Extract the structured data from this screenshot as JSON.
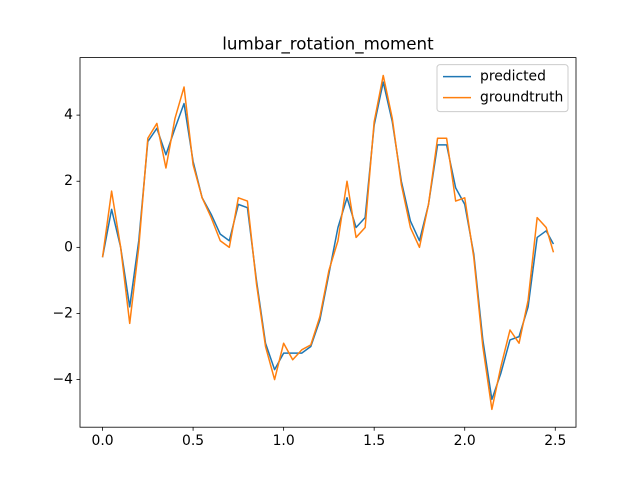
{
  "chart_data": {
    "type": "line",
    "title": "lumbar_rotation_moment",
    "x": [
      0,
      0.05,
      0.1,
      0.15,
      0.2,
      0.25,
      0.3,
      0.35,
      0.4,
      0.45,
      0.5,
      0.55,
      0.6,
      0.65,
      0.7,
      0.75,
      0.8,
      0.85,
      0.9,
      0.95,
      1.0,
      1.05,
      1.1,
      1.15,
      1.2,
      1.25,
      1.3,
      1.35,
      1.4,
      1.45,
      1.5,
      1.55,
      1.6,
      1.65,
      1.7,
      1.75,
      1.8,
      1.85,
      1.9,
      1.95,
      2.0,
      2.05,
      2.1,
      2.15,
      2.2,
      2.25,
      2.3,
      2.35,
      2.4,
      2.45,
      2.49
    ],
    "series": [
      {
        "name": "predicted",
        "color": "#1f77b4",
        "values": [
          -0.3,
          1.15,
          0.0,
          -1.8,
          0.2,
          3.2,
          3.6,
          2.8,
          3.6,
          4.35,
          2.6,
          1.5,
          1.0,
          0.4,
          0.2,
          1.3,
          1.2,
          -1.0,
          -2.9,
          -3.7,
          -3.2,
          -3.2,
          -3.2,
          -3.0,
          -2.2,
          -0.8,
          0.6,
          1.5,
          0.6,
          0.9,
          3.7,
          5.0,
          3.8,
          2.0,
          0.8,
          0.2,
          1.3,
          3.1,
          3.1,
          1.8,
          1.3,
          -0.2,
          -2.8,
          -4.6,
          -3.8,
          -2.8,
          -2.7,
          -1.8,
          0.3,
          0.5,
          0.1
        ]
      },
      {
        "name": "groundtruth",
        "color": "#ff7f0e",
        "values": [
          -0.3,
          1.7,
          0.0,
          -2.3,
          0.0,
          3.3,
          3.75,
          2.4,
          3.9,
          4.85,
          2.5,
          1.5,
          0.9,
          0.2,
          0.0,
          1.5,
          1.4,
          -1.1,
          -3.0,
          -4.0,
          -2.9,
          -3.4,
          -3.1,
          -2.95,
          -2.1,
          -0.7,
          0.2,
          2.0,
          0.3,
          0.6,
          3.8,
          5.2,
          3.9,
          1.9,
          0.6,
          0.0,
          1.3,
          3.3,
          3.3,
          1.4,
          1.5,
          -0.3,
          -3.0,
          -4.9,
          -3.6,
          -2.5,
          -2.9,
          -1.6,
          0.9,
          0.6,
          -0.15
        ]
      }
    ],
    "xlim": [
      -0.1245,
      2.6145
    ],
    "ylim": [
      -5.44,
      5.74
    ],
    "xticks": [
      {
        "value": 0,
        "label": "0.0"
      },
      0.5,
      {
        "value": 1,
        "label": "1.0"
      },
      1.5,
      {
        "value": 2,
        "label": "2.0"
      },
      2.5
    ],
    "yticks": [
      {
        "value": -4,
        "label": "−4"
      },
      {
        "value": -2,
        "label": "−2"
      },
      0,
      2,
      4
    ],
    "legend": "upper right"
  }
}
